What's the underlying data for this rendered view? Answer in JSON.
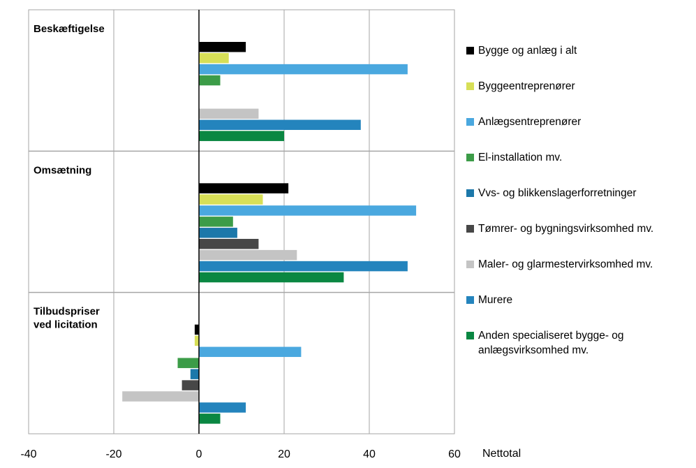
{
  "chart_data": {
    "type": "bar",
    "orientation": "horizontal",
    "x_unit_label": "Nettotal",
    "xlim": [
      -40,
      60
    ],
    "x_ticks": [
      "-40",
      "-20",
      "0",
      "20",
      "40",
      "60"
    ],
    "grid": "vertical",
    "legend_position": "right",
    "series": [
      {
        "name": "Bygge og anlæg i alt",
        "color": "#000000"
      },
      {
        "name": "Byggeentreprenører",
        "color": "#d7df57"
      },
      {
        "name": "Anlægsentreprenører",
        "color": "#4aa8df"
      },
      {
        "name": "El-installation mv.",
        "color": "#3c9c48"
      },
      {
        "name": "Vvs- og blikkenslagerforretninger",
        "color": "#1c78aa"
      },
      {
        "name": "Tømrer- og bygningsvirksomhed mv.",
        "color": "#474747"
      },
      {
        "name": "Maler- og glarmestervirksomhed mv.",
        "color": "#c4c4c4"
      },
      {
        "name": "Murere",
        "color": "#2484bd"
      },
      {
        "name": "Anden specialiseret bygge- og\nanlægsvirksomhed mv.",
        "color": "#0a8742"
      }
    ],
    "panels": [
      {
        "title": "Beskæftigelse",
        "values": [
          11,
          7,
          49,
          5,
          null,
          null,
          14,
          38,
          20
        ]
      },
      {
        "title": "Omsætning",
        "values": [
          21,
          15,
          51,
          8,
          9,
          14,
          23,
          49,
          34
        ]
      },
      {
        "title": "Tilbudspriser\nved licitation",
        "values": [
          -1,
          -1,
          24,
          -5,
          -2,
          -4,
          -18,
          11,
          5
        ]
      }
    ]
  }
}
